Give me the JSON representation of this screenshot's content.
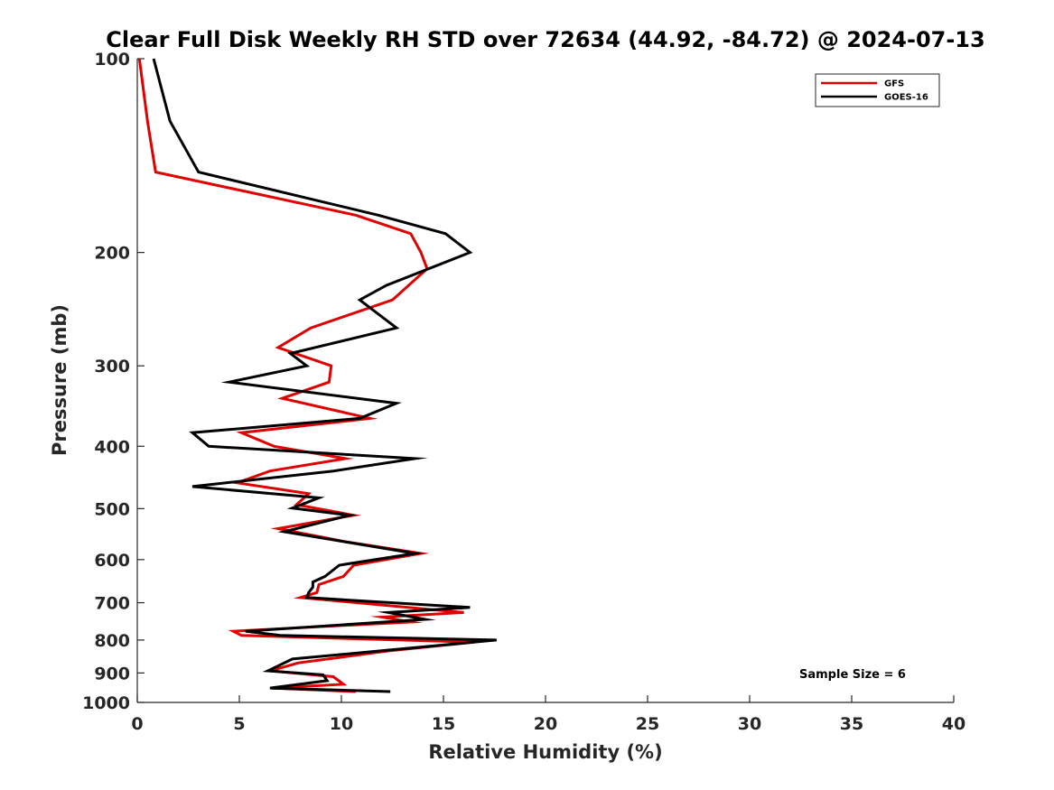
{
  "chart_data": {
    "type": "line",
    "title": "Clear Full Disk Weekly RH STD over 72634 (44.92, -84.72) @ 2024-07-13",
    "xlabel": "Relative Humidity (%)",
    "ylabel": "Pressure (mb)",
    "xlim": [
      0,
      40
    ],
    "ylim": [
      1000,
      100
    ],
    "yscale": "log",
    "xticks": [
      0,
      5,
      10,
      15,
      20,
      25,
      30,
      35,
      40
    ],
    "yticks": [
      100,
      200,
      300,
      400,
      500,
      600,
      700,
      800,
      900,
      1000
    ],
    "legend": {
      "position": "top-right"
    },
    "annotation": "Sample Size = 6",
    "series": [
      {
        "name": "GFS",
        "color": "#e00000",
        "points": [
          [
            0.1,
            100
          ],
          [
            0.5,
            125
          ],
          [
            0.9,
            150
          ],
          [
            10.7,
            175
          ],
          [
            13.4,
            187
          ],
          [
            13.9,
            200
          ],
          [
            14.2,
            212
          ],
          [
            12.5,
            237
          ],
          [
            8.5,
            262
          ],
          [
            6.9,
            281
          ],
          [
            9.5,
            300
          ],
          [
            9.4,
            318
          ],
          [
            7.1,
            337
          ],
          [
            11.4,
            362
          ],
          [
            5.1,
            381
          ],
          [
            6.7,
            400
          ],
          [
            10.2,
            418
          ],
          [
            6.5,
            437
          ],
          [
            4.9,
            456
          ],
          [
            8.4,
            474
          ],
          [
            7.8,
            493
          ],
          [
            10.6,
            512
          ],
          [
            6.9,
            537
          ],
          [
            10.1,
            562
          ],
          [
            13.9,
            587
          ],
          [
            10.6,
            612
          ],
          [
            10.1,
            637
          ],
          [
            8.9,
            656
          ],
          [
            8.8,
            675
          ],
          [
            8.0,
            687
          ],
          [
            16.0,
            725
          ],
          [
            12.0,
            737
          ],
          [
            13.4,
            750
          ],
          [
            4.7,
            775
          ],
          [
            5.1,
            787
          ],
          [
            16.5,
            806
          ],
          [
            12.4,
            831
          ],
          [
            7.9,
            868
          ],
          [
            6.5,
            893
          ],
          [
            9.6,
            912
          ],
          [
            10.1,
            937
          ],
          [
            6.6,
            950
          ],
          [
            10.7,
            962
          ]
        ]
      },
      {
        "name": "GOES-16",
        "color": "#000000",
        "points": [
          [
            0.8,
            100
          ],
          [
            1.6,
            125
          ],
          [
            3.0,
            150
          ],
          [
            11.8,
            175
          ],
          [
            15.1,
            187
          ],
          [
            16.3,
            200
          ],
          [
            12.2,
            225
          ],
          [
            10.9,
            237
          ],
          [
            12.7,
            262
          ],
          [
            7.5,
            287
          ],
          [
            8.3,
            300
          ],
          [
            4.5,
            318
          ],
          [
            12.7,
            343
          ],
          [
            10.9,
            362
          ],
          [
            2.7,
            381
          ],
          [
            3.5,
            400
          ],
          [
            13.6,
            418
          ],
          [
            9.6,
            437
          ],
          [
            2.7,
            462
          ],
          [
            8.9,
            481
          ],
          [
            7.6,
            499
          ],
          [
            10.4,
            512
          ],
          [
            7.2,
            543
          ],
          [
            13.6,
            587
          ],
          [
            9.9,
            612
          ],
          [
            9.2,
            637
          ],
          [
            8.6,
            650
          ],
          [
            8.6,
            662
          ],
          [
            8.4,
            675
          ],
          [
            8.3,
            687
          ],
          [
            16.3,
            712
          ],
          [
            12.3,
            725
          ],
          [
            14.1,
            743
          ],
          [
            5.3,
            775
          ],
          [
            7.0,
            787
          ],
          [
            17.6,
            800
          ],
          [
            7.6,
            856
          ],
          [
            6.4,
            893
          ],
          [
            9.1,
            906
          ],
          [
            9.3,
            925
          ],
          [
            6.5,
            950
          ],
          [
            12.4,
            962
          ]
        ]
      }
    ]
  }
}
